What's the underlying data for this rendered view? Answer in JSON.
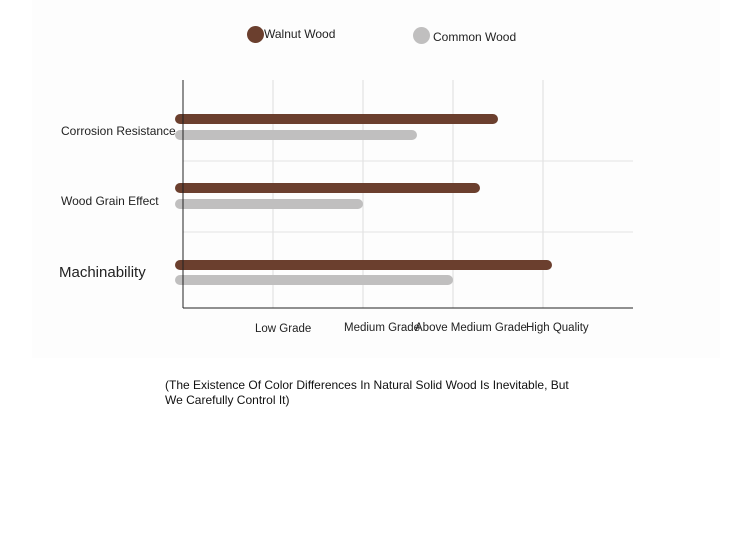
{
  "chart_data": {
    "type": "bar",
    "orientation": "horizontal",
    "categories": [
      "Corrosion Resistance",
      "Wood Grain Effect",
      "Machinability"
    ],
    "x_ticks": [
      "Low Grade",
      "Medium Grade",
      "Above Medium Grade",
      "High Quality"
    ],
    "xlim": [
      0,
      5
    ],
    "series": [
      {
        "name": "Walnut Wood",
        "color": "#6b3f2e",
        "values": [
          3.5,
          3.3,
          4.1
        ]
      },
      {
        "name": "Common Wood",
        "color": "#c0bfbf",
        "values": [
          2.6,
          2.0,
          3.0
        ]
      }
    ],
    "legend_position": "top-center",
    "grid": true
  },
  "note": "(The Existence Of Color Differences In Natural Solid Wood Is Inevitable, But We Carefully Control It)"
}
